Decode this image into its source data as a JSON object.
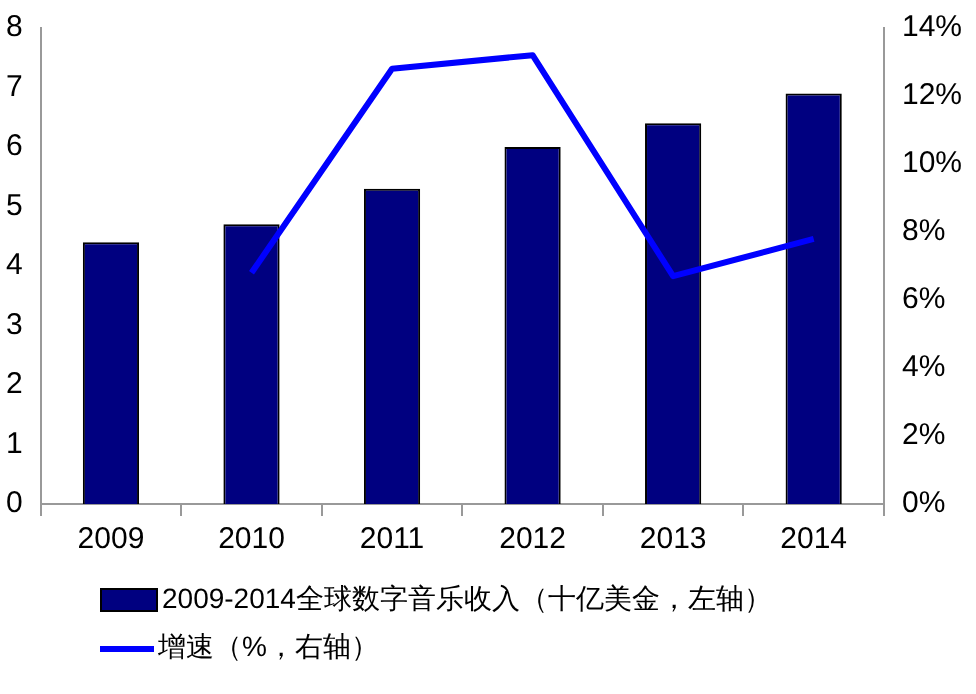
{
  "chart_data": {
    "type": "bar",
    "categories": [
      "2009",
      "2010",
      "2011",
      "2012",
      "2013",
      "2014"
    ],
    "series": [
      {
        "name": "2009-2014全球数字音乐收入（十亿美金，左轴）",
        "color": "#000080",
        "values": [
          4.4,
          4.7,
          5.3,
          6.0,
          6.4,
          6.9
        ]
      },
      {
        "name": "增速（%，右轴）",
        "type": "line",
        "axis": "y2",
        "color": "#0000ff",
        "values": [
          null,
          6.8,
          12.8,
          13.2,
          6.7,
          7.8
        ]
      }
    ],
    "ylim": [
      0,
      8
    ],
    "yticks": [
      0,
      1,
      2,
      3,
      4,
      5,
      6,
      7,
      8
    ],
    "y2lim": [
      0,
      14
    ],
    "y2ticks": [
      {
        "value": 0,
        "label": "0%"
      },
      {
        "value": 2,
        "label": "2%"
      },
      {
        "value": 4,
        "label": "4%"
      },
      {
        "value": 6,
        "label": "6%"
      },
      {
        "value": 8,
        "label": "8%"
      },
      {
        "value": 10,
        "label": "10%"
      },
      {
        "value": 12,
        "label": "12%"
      },
      {
        "value": 14,
        "label": "14%"
      }
    ],
    "grid": false,
    "legend": "bottom",
    "marker": "none"
  }
}
